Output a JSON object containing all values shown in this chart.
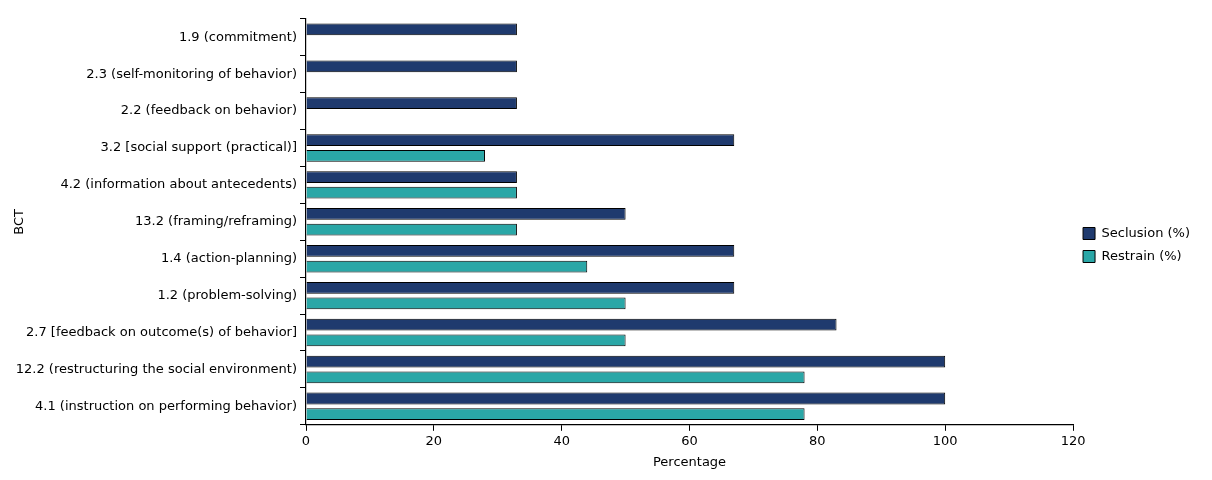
{
  "chart_data": {
    "type": "bar",
    "orientation": "horizontal",
    "categories": [
      "1.9 (commitment)",
      "2.3 (self-monitoring of behavior)",
      "2.2 (feedback on behavior)",
      "3.2 [social support (practical)]",
      "4.2 (information about antecedents)",
      "13.2 (framing/reframing)",
      "1.4 (action-planning)",
      "1.2 (problem-solving)",
      "2.7 [feedback on outcome(s) of behavior]",
      "12.2 (restructuring the social environment)",
      "4.1 (instruction on performing behavior)"
    ],
    "series": [
      {
        "name": "Seclusion (%)",
        "color": "#1f3a6e",
        "values": [
          33,
          33,
          33,
          67,
          33,
          50,
          67,
          67,
          83,
          100,
          100
        ]
      },
      {
        "name": "Restrain (%)",
        "color": "#2aa7a7",
        "values": [
          null,
          null,
          null,
          28,
          33,
          33,
          44,
          50,
          50,
          78,
          78
        ]
      }
    ],
    "xlim": [
      0,
      120
    ],
    "xticks": [
      0,
      20,
      40,
      60,
      80,
      100,
      120
    ],
    "xlabel": "Percentage",
    "ylabel": "BCT",
    "grid": false,
    "legend": "right"
  }
}
